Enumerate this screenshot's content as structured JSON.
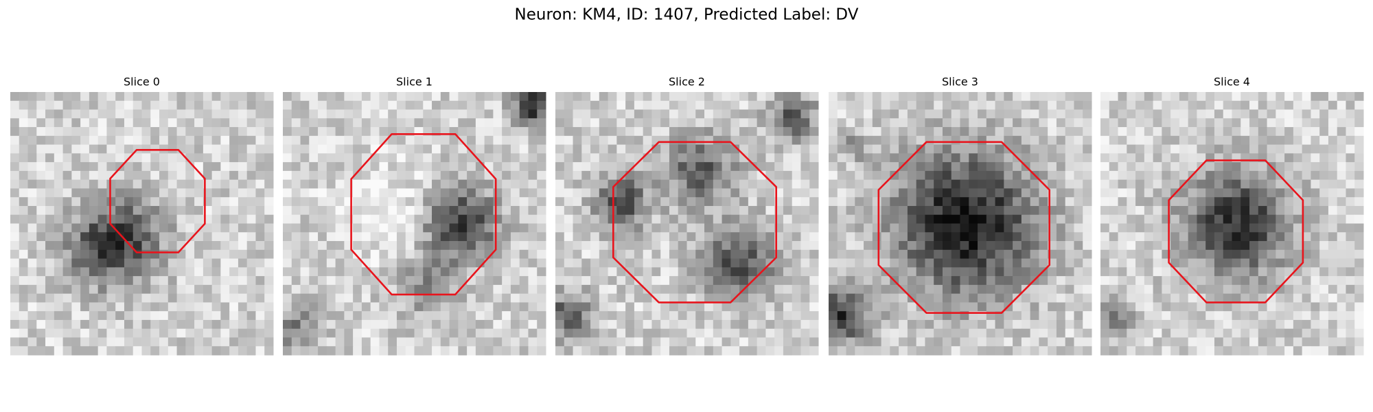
{
  "title": "Neuron: KM4, ID: 1407, Predicted Label: DV",
  "panels": [
    {
      "title": "Slice 0"
    },
    {
      "title": "Slice 1"
    },
    {
      "title": "Slice 2"
    },
    {
      "title": "Slice 3"
    },
    {
      "title": "Slice 4"
    }
  ]
}
